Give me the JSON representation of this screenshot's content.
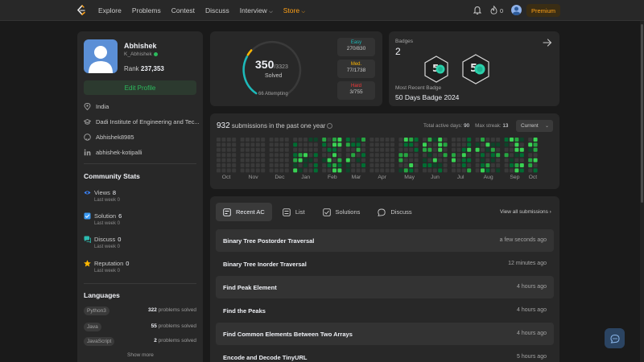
{
  "nav": {
    "links": [
      "Explore",
      "Problems",
      "Contest",
      "Discuss",
      "Interview",
      "Store"
    ],
    "fire_count": "0",
    "premium": "Premium"
  },
  "profile": {
    "name": "Abhishek",
    "username": "K_Abhishek",
    "rank_label": "Rank",
    "rank_value": "237,353",
    "edit_label": "Edit Profile",
    "location": "India",
    "school": "Dadi Institute of Engineering and Tec...",
    "github": "Abhishek8985",
    "linkedin": "abhishek-kotipalli",
    "community_title": "Community Stats",
    "stats": [
      {
        "name": "Views",
        "value": "8",
        "sub": "Last week 0"
      },
      {
        "name": "Solution",
        "value": "6",
        "sub": "Last week 0"
      },
      {
        "name": "Discuss",
        "value": "0",
        "sub": "Last week 0"
      },
      {
        "name": "Reputation",
        "value": "0",
        "sub": "Last week 0"
      }
    ],
    "languages_title": "Languages",
    "languages": [
      {
        "name": "Python3",
        "count": "322",
        "suffix": "problems solved"
      },
      {
        "name": "Java",
        "count": "55",
        "suffix": "problems solved"
      },
      {
        "name": "JavaScript",
        "count": "2",
        "suffix": "problems solved"
      }
    ],
    "show_more": "Show more"
  },
  "solved": {
    "count": "350",
    "total": "/3323",
    "label": "Solved",
    "attempting": "66 Attempting",
    "difficulties": [
      {
        "name": "Easy",
        "value": "270/830",
        "color": "#1cbaba"
      },
      {
        "name": "Med.",
        "value": "77/1738",
        "color": "#ffb700"
      },
      {
        "name": "Hard",
        "value": "3/755",
        "color": "#f63737"
      }
    ]
  },
  "badges": {
    "label": "Badges",
    "count": "2",
    "recent_label": "Most Recent Badge",
    "recent_name": "50 Days Badge 2024"
  },
  "submissions": {
    "count": "932",
    "title_suffix": "submissions in the past one year",
    "active_label": "Total active days:",
    "active_value": "90",
    "streak_label": "Max streak:",
    "streak_value": "13",
    "select": "Current",
    "months": [
      "Oct",
      "Nov",
      "Dec",
      "Jan",
      "Feb",
      "Mar",
      "Apr",
      "May",
      "Jun",
      "Jul",
      "Aug",
      "Sep",
      "Oct"
    ]
  },
  "recent": {
    "tabs": [
      "Recent AC",
      "List",
      "Solutions",
      "Discuss"
    ],
    "view_all": "View all submissions",
    "rows": [
      {
        "title": "Binary Tree Postorder Traversal",
        "time": "a few seconds ago"
      },
      {
        "title": "Binary Tree Inorder Traversal",
        "time": "12 minutes ago"
      },
      {
        "title": "Find Peak Element",
        "time": "4 hours ago"
      },
      {
        "title": "Find the Peaks",
        "time": "4 hours ago"
      },
      {
        "title": "Find Common Elements Between Two Arrays",
        "time": "4 hours ago"
      },
      {
        "title": "Encode and Decode TinyURL",
        "time": "5 hours ago"
      }
    ]
  },
  "colors": {
    "accent": "#ffa116",
    "green": "#2cbb5d",
    "easy": "#1cbaba",
    "medium": "#ffb700",
    "hard": "#f63737"
  }
}
